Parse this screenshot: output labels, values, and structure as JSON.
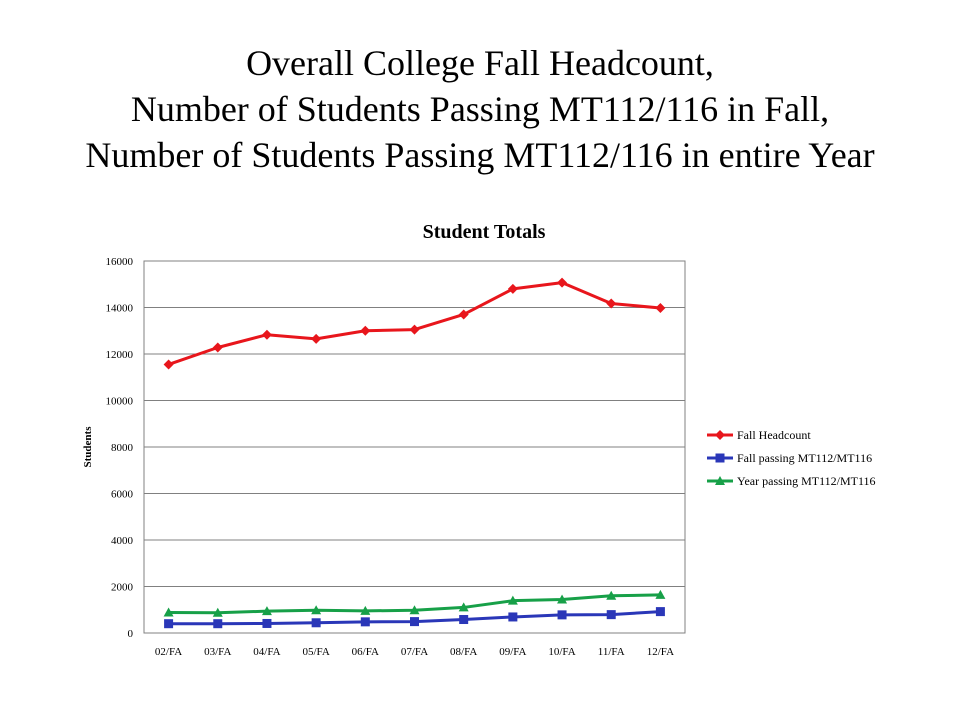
{
  "slide": {
    "title_lines": [
      "Overall College Fall Headcount,",
      "Number of Students Passing MT112/116 in Fall,",
      "Number of Students Passing MT112/116 in entire Year"
    ]
  },
  "chart_data": {
    "type": "line",
    "title": "Student Totals",
    "xlabel": "",
    "ylabel": "Students",
    "ylim": [
      0,
      16000
    ],
    "yticks": [
      0,
      2000,
      4000,
      6000,
      8000,
      10000,
      12000,
      14000,
      16000
    ],
    "grid": true,
    "legend_position": "right",
    "categories": [
      "02/FA",
      "03/FA",
      "04/FA",
      "05/FA",
      "06/FA",
      "07/FA",
      "08/FA",
      "09/FA",
      "10/FA",
      "11/FA",
      "12/FA"
    ],
    "series": [
      {
        "name": "Fall Headcount",
        "color": "#e8161c",
        "marker": "diamond",
        "values": [
          11550,
          12280,
          12830,
          12650,
          13000,
          13050,
          13700,
          14800,
          15070,
          14170,
          13980
        ]
      },
      {
        "name": "Fall passing MT112/MT116",
        "color": "#2a37b8",
        "marker": "square",
        "values": [
          400,
          400,
          410,
          440,
          480,
          490,
          580,
          690,
          780,
          790,
          920
        ]
      },
      {
        "name": "Year passing MT112/MT116",
        "color": "#17a048",
        "marker": "triangle",
        "values": [
          880,
          870,
          940,
          980,
          950,
          980,
          1100,
          1390,
          1440,
          1600,
          1640
        ]
      }
    ]
  }
}
